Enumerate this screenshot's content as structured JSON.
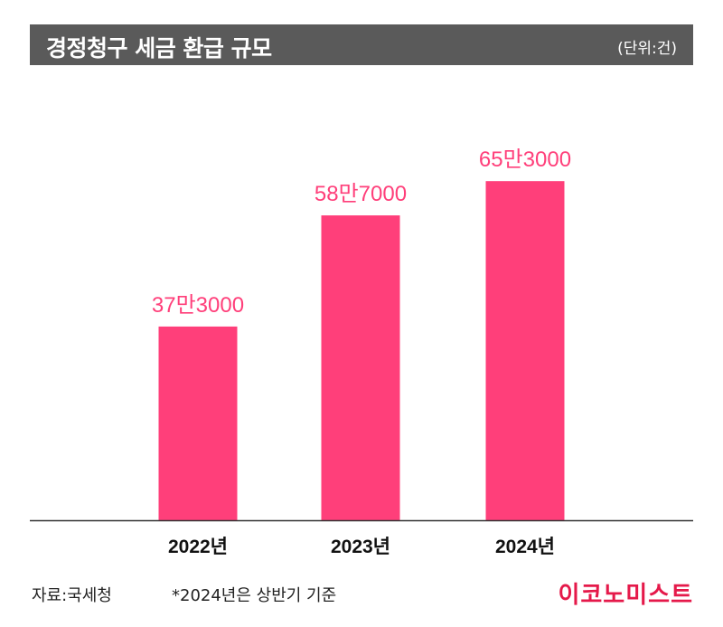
{
  "title": "경정청구 세금 환급 규모",
  "unit": "(단위:건)",
  "source": "자료:국세청",
  "note": "*2024년은 상반기 기준",
  "logo": "이코노미스트",
  "colors": {
    "bar": "#ff3f7a",
    "label": "#ff3f7a",
    "title_band": "#5a5a5a",
    "logo": "#e5194a",
    "axis": "#333333"
  },
  "chart_data": {
    "type": "bar",
    "categories": [
      "2022년",
      "2023년",
      "2024년"
    ],
    "values": [
      373000,
      587000,
      653000
    ],
    "data_labels": [
      "37만3000",
      "58만7000",
      "65만3000"
    ],
    "ylim": [
      0,
      1000000
    ],
    "grid": false,
    "legend": "none"
  }
}
